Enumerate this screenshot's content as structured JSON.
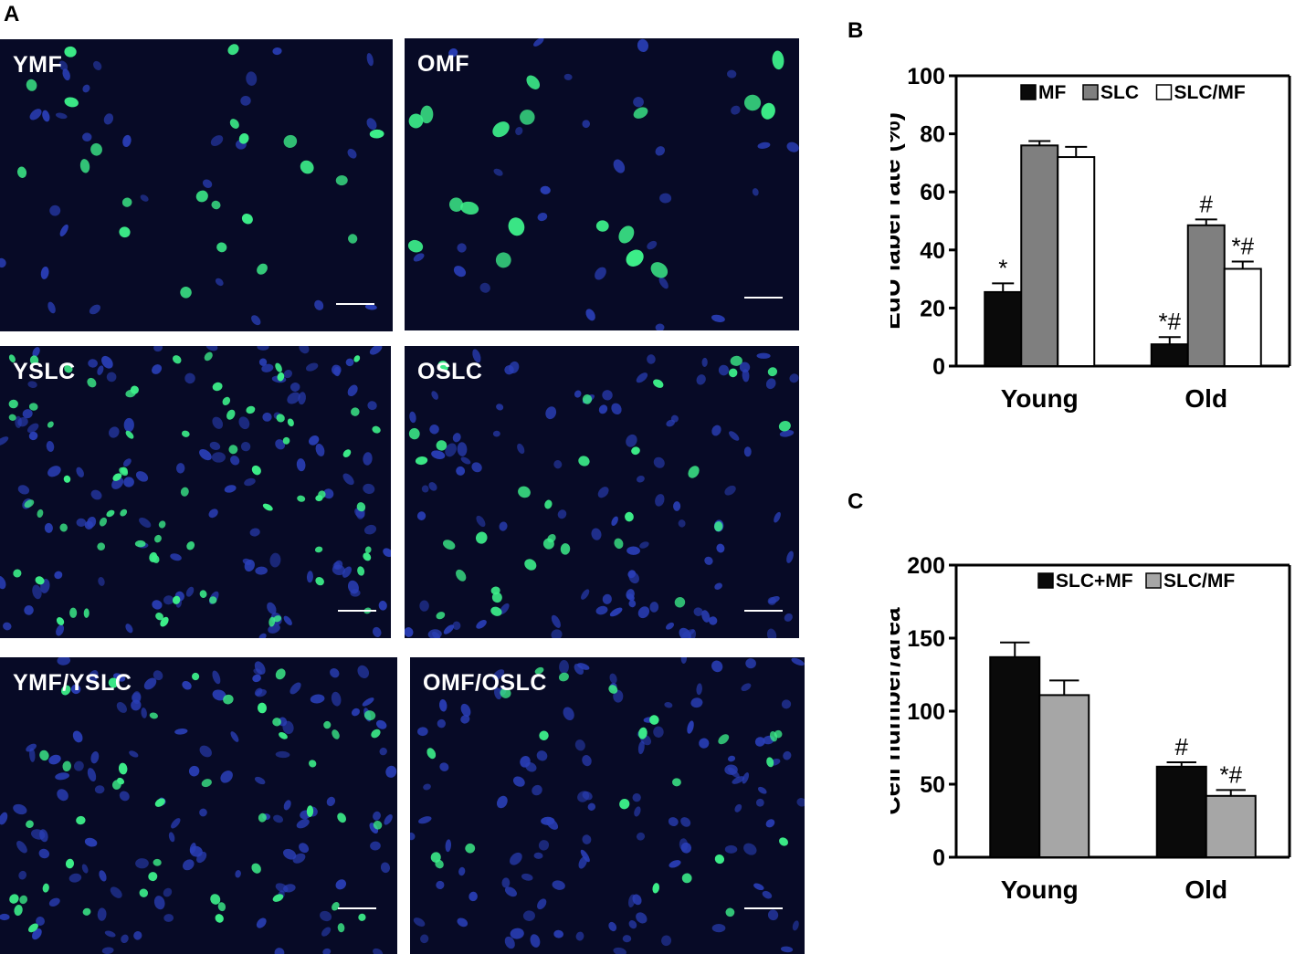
{
  "panel_letters": {
    "a": "A",
    "b": "B",
    "c": "C"
  },
  "micrographs": [
    {
      "label": "YMF",
      "nuclei": {
        "green": 22,
        "blue": 30,
        "green_size": 1.0
      }
    },
    {
      "label": "OMF",
      "nuclei": {
        "green": 18,
        "blue": 28,
        "green_size": 1.3
      }
    },
    {
      "label": "YSLC",
      "nuclei": {
        "green": 70,
        "blue": 110,
        "green_size": 0.75
      }
    },
    {
      "label": "OSLC",
      "nuclei": {
        "green": 30,
        "blue": 95,
        "green_size": 0.95
      }
    },
    {
      "label": "YMF/YSLC",
      "nuclei": {
        "green": 45,
        "blue": 110,
        "green_size": 0.8
      }
    },
    {
      "label": "OMF/OSLC",
      "nuclei": {
        "green": 22,
        "blue": 110,
        "green_size": 0.85
      }
    }
  ],
  "colors": {
    "micro_bg": "#070a26",
    "green_nucleus": "#3df08a",
    "blue_nucleus": "#2a3fb8",
    "bar_black": "#0a0a0a",
    "bar_gray": "#7f7f7f",
    "bar_light_gray": "#a6a6a6",
    "bar_white": "#ffffff"
  },
  "chart_data": [
    {
      "type": "bar",
      "panel": "B",
      "title": "",
      "xlabel": "",
      "ylabel": "EdU label rate (%)",
      "ylim": [
        0,
        100
      ],
      "yticks": [
        0,
        20,
        40,
        60,
        80,
        100
      ],
      "categories": [
        "Young",
        "Old"
      ],
      "series": [
        {
          "name": "MF",
          "values": [
            25.5,
            7.5
          ],
          "errors": [
            3,
            2.5
          ],
          "color": "#0a0a0a",
          "annotations": [
            "*",
            "*#"
          ]
        },
        {
          "name": "SLC",
          "values": [
            76,
            48.5
          ],
          "errors": [
            1.5,
            2
          ],
          "color": "#7f7f7f",
          "annotations": [
            "",
            "#"
          ]
        },
        {
          "name": "SLC/MF",
          "values": [
            72,
            33.5
          ],
          "errors": [
            3.5,
            2.5
          ],
          "color": "#ffffff",
          "annotations": [
            "",
            "*#"
          ]
        }
      ],
      "legend": "top"
    },
    {
      "type": "bar",
      "panel": "C",
      "title": "",
      "xlabel": "",
      "ylabel": "Cell number/area",
      "ylim": [
        0,
        200
      ],
      "yticks": [
        0,
        50,
        100,
        150,
        200
      ],
      "categories": [
        "Young",
        "Old"
      ],
      "series": [
        {
          "name": "SLC+MF",
          "values": [
            137,
            62
          ],
          "errors": [
            10,
            3
          ],
          "color": "#0a0a0a",
          "annotations": [
            "",
            "#"
          ]
        },
        {
          "name": "SLC/MF",
          "values": [
            111,
            42
          ],
          "errors": [
            10,
            4
          ],
          "color": "#a6a6a6",
          "annotations": [
            "",
            "*#"
          ]
        }
      ],
      "legend": "top"
    }
  ]
}
